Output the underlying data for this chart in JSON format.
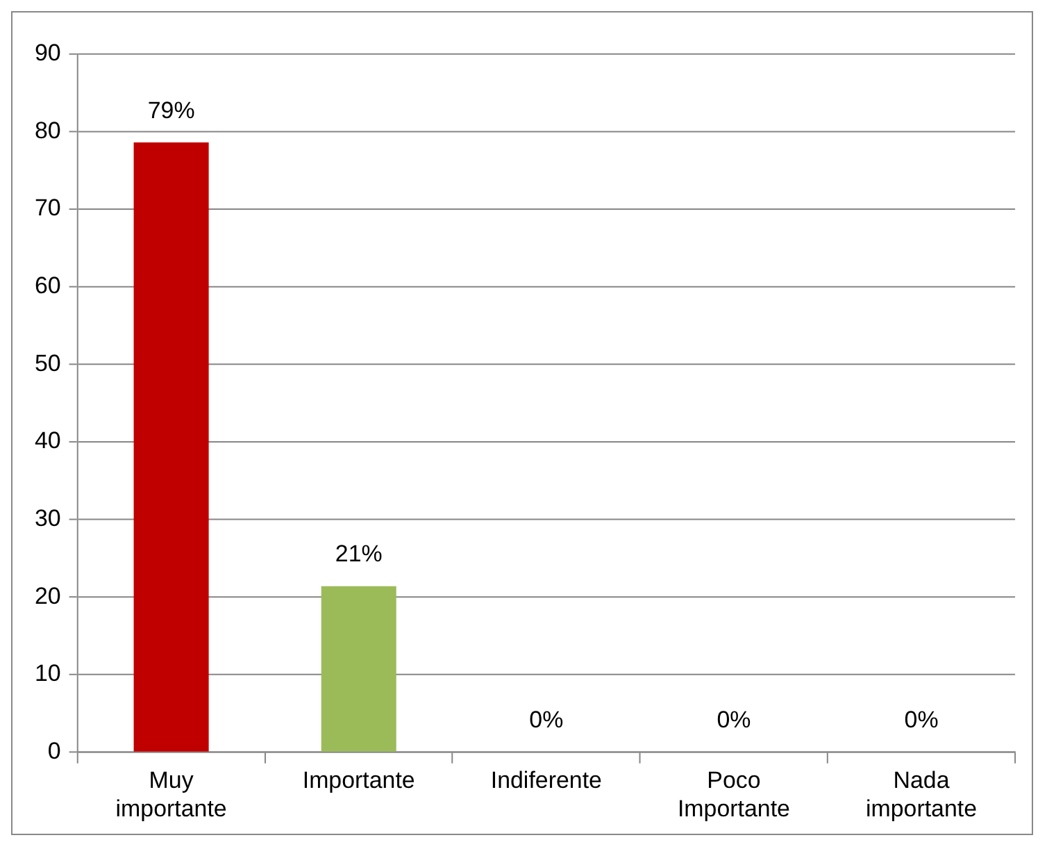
{
  "chart_data": {
    "type": "bar",
    "categories": [
      "Muy importante",
      "Importante",
      "Indiferente",
      "Poco Importante",
      "Nada importante"
    ],
    "values": [
      78.6,
      21.4,
      0,
      0,
      0
    ],
    "colors": [
      "#c00000",
      "#9bbb59",
      "#9bbb59",
      "#9bbb59",
      "#9bbb59"
    ],
    "value_labels": [
      "79%",
      "21%",
      "0%",
      "0%",
      "0%"
    ],
    "ylim": [
      0,
      90
    ],
    "yticks": [
      0,
      10,
      20,
      30,
      40,
      50,
      60,
      70,
      80,
      90
    ],
    "grid": "y",
    "legend": false
  }
}
